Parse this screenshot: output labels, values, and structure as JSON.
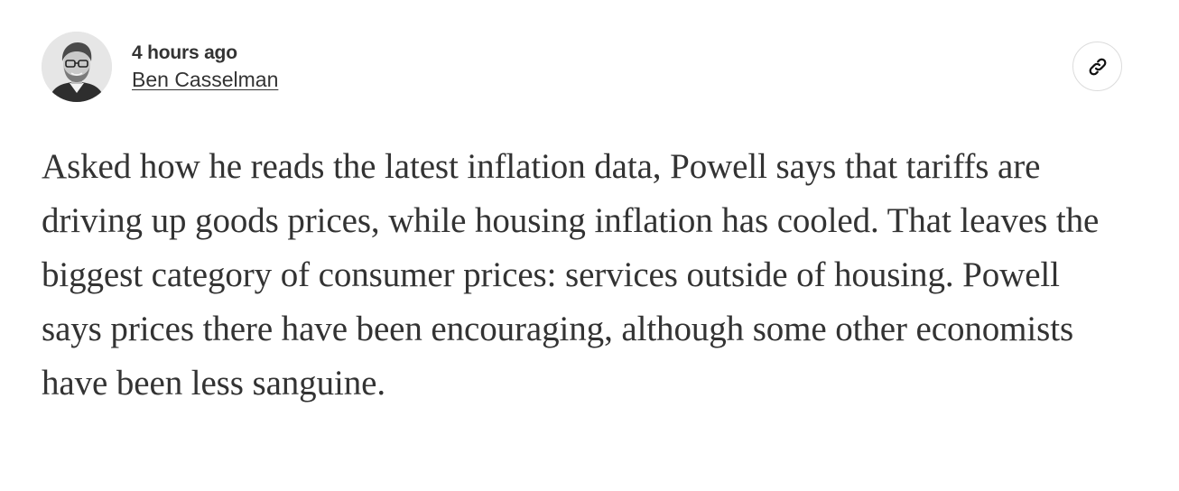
{
  "post": {
    "timestamp": "4 hours ago",
    "author": "Ben Casselman",
    "avatar_icon": "author-portrait",
    "link_icon": "link-icon",
    "body": "Asked how he reads the latest inflation data, Powell says that tariffs are driving up goods prices, while housing inflation has cooled. That leaves the biggest category of consumer prices: services outside of housing. Powell says prices there have been encouraging, although some other economists have been less sanguine."
  }
}
